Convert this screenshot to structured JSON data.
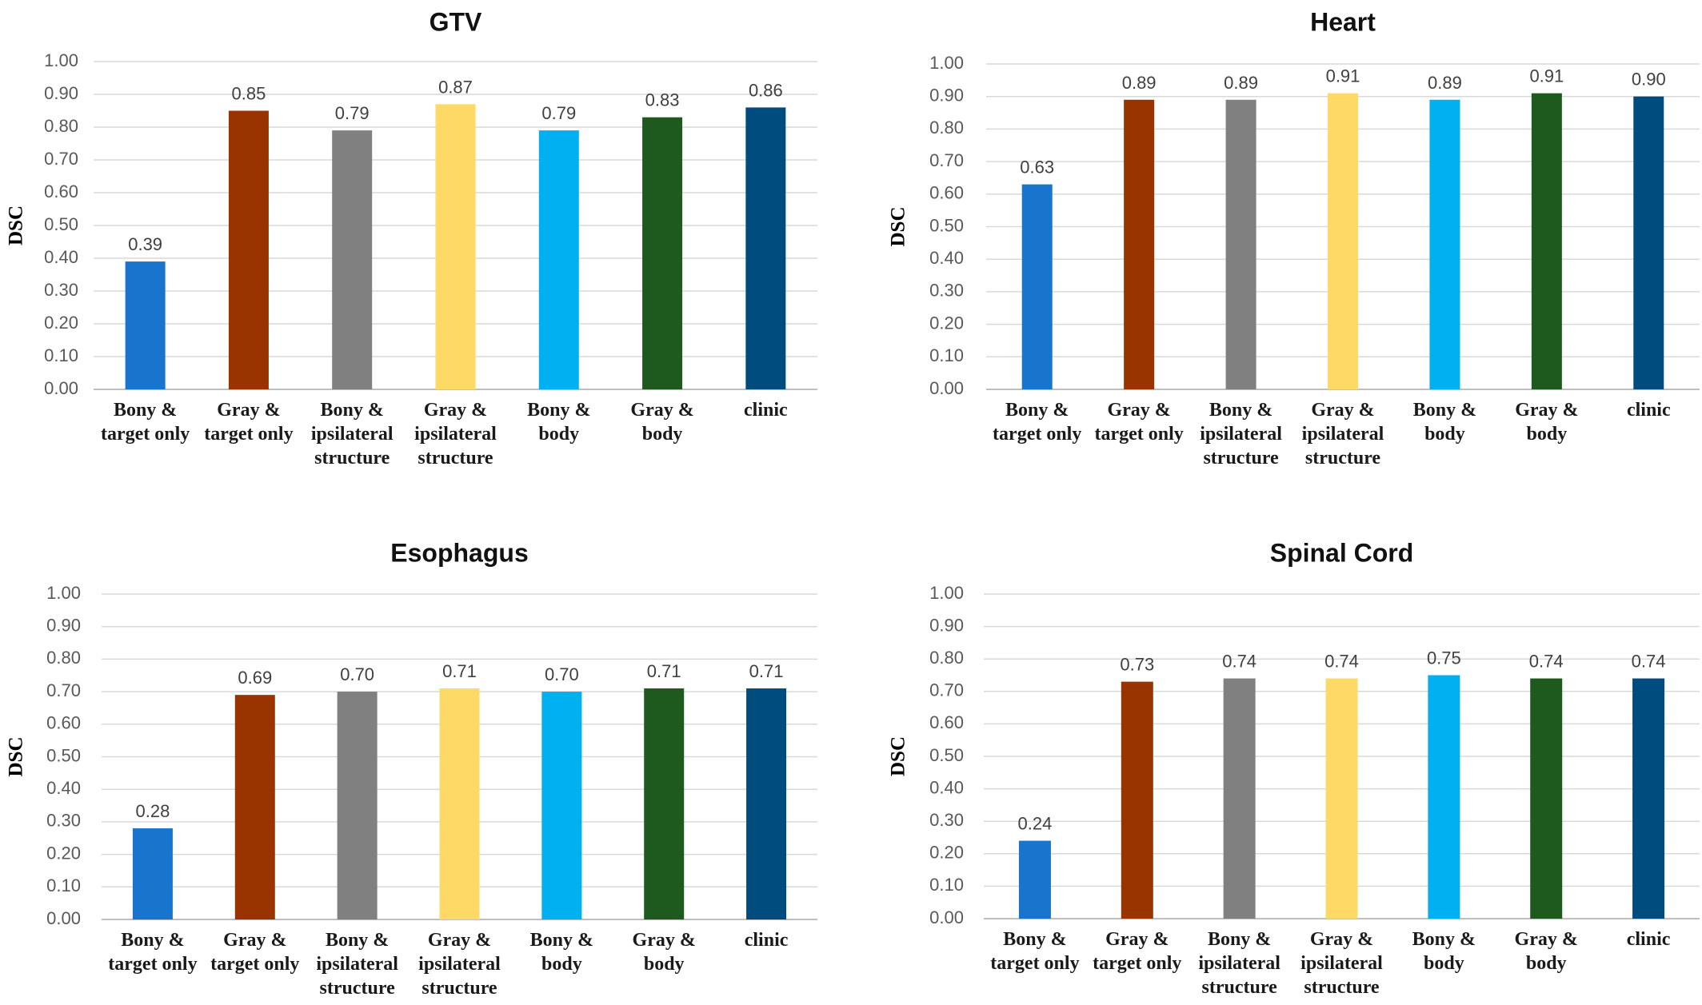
{
  "colors": [
    "#1874CD",
    "#993300",
    "#808080",
    "#FFD966",
    "#00B0F0",
    "#1E5A1E",
    "#004C7F"
  ],
  "chart_data": [
    {
      "type": "bar",
      "title": "GTV",
      "ylabel": "DSC",
      "xlabel": "",
      "ylim": [
        0,
        1
      ],
      "yticks": [
        "0.00",
        "0.10",
        "0.20",
        "0.30",
        "0.40",
        "0.50",
        "0.60",
        "0.70",
        "0.80",
        "0.90",
        "1.00"
      ],
      "categories": [
        [
          "Bony &",
          "target only"
        ],
        [
          "Gray &",
          "target only"
        ],
        [
          "Bony &",
          "ipsilateral",
          "structure"
        ],
        [
          "Gray &",
          "ipsilateral",
          "structure"
        ],
        [
          "Bony &",
          "body"
        ],
        [
          "Gray &",
          "body"
        ],
        [
          "clinic"
        ]
      ],
      "values": [
        0.39,
        0.85,
        0.79,
        0.87,
        0.79,
        0.83,
        0.86
      ],
      "data_labels": [
        "0.39",
        "0.85",
        "0.79",
        "0.87",
        "0.79",
        "0.83",
        "0.86"
      ],
      "grid": true
    },
    {
      "type": "bar",
      "title": "Heart",
      "ylabel": "DSC",
      "xlabel": "",
      "ylim": [
        0,
        1
      ],
      "yticks": [
        "0.00",
        "0.10",
        "0.20",
        "0.30",
        "0.40",
        "0.50",
        "0.60",
        "0.70",
        "0.80",
        "0.90",
        "1.00"
      ],
      "categories": [
        [
          "Bony &",
          "target only"
        ],
        [
          "Gray &",
          "target only"
        ],
        [
          "Bony &",
          "ipsilateral",
          "structure"
        ],
        [
          "Gray &",
          "ipsilateral",
          "structure"
        ],
        [
          "Bony &",
          "body"
        ],
        [
          "Gray &",
          "body"
        ],
        [
          "clinic"
        ]
      ],
      "values": [
        0.63,
        0.89,
        0.89,
        0.91,
        0.89,
        0.91,
        0.9
      ],
      "data_labels": [
        "0.63",
        "0.89",
        "0.89",
        "0.91",
        "0.89",
        "0.91",
        "0.90"
      ],
      "grid": true
    },
    {
      "type": "bar",
      "title": "Esophagus",
      "ylabel": "DSC",
      "xlabel": "",
      "ylim": [
        0,
        1
      ],
      "yticks": [
        "0.00",
        "0.10",
        "0.20",
        "0.30",
        "0.40",
        "0.50",
        "0.60",
        "0.70",
        "0.80",
        "0.90",
        "1.00"
      ],
      "categories": [
        [
          "Bony &",
          "target only"
        ],
        [
          "Gray &",
          "target only"
        ],
        [
          "Bony &",
          "ipsilateral",
          "structure"
        ],
        [
          "Gray &",
          "ipsilateral",
          "structure"
        ],
        [
          "Bony &",
          "body"
        ],
        [
          "Gray &",
          "body"
        ],
        [
          "clinic"
        ]
      ],
      "values": [
        0.28,
        0.69,
        0.7,
        0.71,
        0.7,
        0.71,
        0.71
      ],
      "data_labels": [
        "0.28",
        "0.69",
        "0.70",
        "0.71",
        "0.70",
        "0.71",
        "0.71"
      ],
      "grid": true
    },
    {
      "type": "bar",
      "title": "Spinal Cord",
      "ylabel": "DSC",
      "xlabel": "",
      "ylim": [
        0,
        1
      ],
      "yticks": [
        "0.00",
        "0.10",
        "0.20",
        "0.30",
        "0.40",
        "0.50",
        "0.60",
        "0.70",
        "0.80",
        "0.90",
        "1.00"
      ],
      "categories": [
        [
          "Bony &",
          "target only"
        ],
        [
          "Gray &",
          "target only"
        ],
        [
          "Bony &",
          "ipsilateral",
          "structure"
        ],
        [
          "Gray &",
          "ipsilateral",
          "structure"
        ],
        [
          "Bony &",
          "body"
        ],
        [
          "Gray &",
          "body"
        ],
        [
          "clinic"
        ]
      ],
      "values": [
        0.24,
        0.73,
        0.74,
        0.74,
        0.75,
        0.74,
        0.74
      ],
      "data_labels": [
        "0.24",
        "0.73",
        "0.74",
        "0.74",
        "0.75",
        "0.74",
        "0.74"
      ],
      "grid": true
    }
  ]
}
